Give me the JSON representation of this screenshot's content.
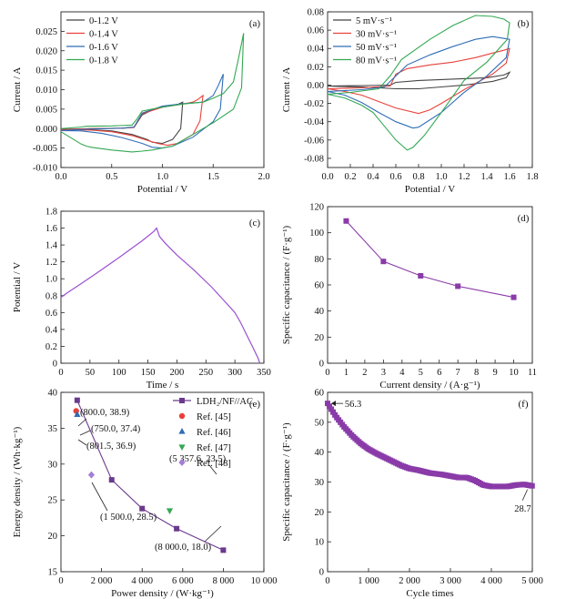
{
  "chart_data": [
    {
      "type": "line",
      "panel_label": "(a)",
      "xlabel": "Potential / V",
      "ylabel": "Current / A",
      "xlim": [
        0,
        2.0
      ],
      "ylim": [
        -0.01,
        0.03
      ],
      "xticks": [
        "0.0",
        "0.5",
        "1.0",
        "1.5",
        "2.0"
      ],
      "yticks": [
        "-0.010",
        "-0.005",
        "0.000",
        "0.005",
        "0.010",
        "0.015",
        "0.020",
        "0.025"
      ],
      "legend_position": "top-left",
      "series": [
        {
          "name": "0-1.2 V",
          "color": "#444444",
          "x": [
            0,
            0.3,
            0.6,
            0.72,
            0.8,
            0.9,
            1.0,
            1.1,
            1.15,
            1.2,
            1.18,
            1.1,
            1.0,
            0.9,
            0.85,
            0.7,
            0.5,
            0.3,
            0.1,
            0
          ],
          "y": [
            -0.0002,
            0.0,
            0.0001,
            0.0003,
            0.0035,
            0.0048,
            0.0055,
            0.006,
            0.0062,
            0.0068,
            0.0,
            -0.0028,
            -0.0038,
            -0.0035,
            -0.0028,
            -0.0015,
            -0.0006,
            -0.0003,
            -0.0002,
            -0.0002
          ]
        },
        {
          "name": "0-1.4 V",
          "color": "#e8413a",
          "x": [
            0,
            0.3,
            0.6,
            0.72,
            0.8,
            1.0,
            1.2,
            1.3,
            1.35,
            1.4,
            1.37,
            1.3,
            1.15,
            1.05,
            0.95,
            0.85,
            0.7,
            0.5,
            0.3,
            0.1,
            0
          ],
          "y": [
            -0.0003,
            0.0,
            0.0001,
            0.0003,
            0.0038,
            0.0055,
            0.0063,
            0.0068,
            0.0075,
            0.0085,
            0.002,
            -0.0015,
            -0.0038,
            -0.0043,
            -0.0038,
            -0.003,
            -0.0018,
            -0.0008,
            -0.0004,
            -0.0003,
            -0.0003
          ]
        },
        {
          "name": "0-1.6 V",
          "color": "#2f6db5",
          "x": [
            0,
            0.3,
            0.6,
            0.72,
            0.8,
            1.0,
            1.2,
            1.4,
            1.5,
            1.55,
            1.6,
            1.57,
            1.5,
            1.3,
            1.1,
            1.0,
            0.9,
            0.8,
            0.6,
            0.4,
            0.2,
            0
          ],
          "y": [
            -0.0005,
            -0.0001,
            0.0001,
            0.0004,
            0.004,
            0.0058,
            0.0064,
            0.0068,
            0.0085,
            0.011,
            0.014,
            0.005,
            0.0018,
            -0.0022,
            -0.0045,
            -0.005,
            -0.0048,
            -0.0038,
            -0.0023,
            -0.0012,
            -0.0006,
            -0.0005
          ]
        },
        {
          "name": "0-1.8 V",
          "color": "#33a852",
          "x": [
            0,
            0.2,
            0.25,
            0.5,
            0.7,
            0.75,
            0.8,
            1.0,
            1.2,
            1.4,
            1.5,
            1.6,
            1.7,
            1.75,
            1.8,
            1.78,
            1.7,
            1.5,
            1.3,
            1.1,
            1.0,
            0.9,
            0.8,
            0.7,
            0.5,
            0.3,
            0.25,
            0.2,
            0
          ],
          "y": [
            0.0,
            0.0004,
            0.0006,
            0.0007,
            0.0009,
            0.0025,
            0.0045,
            0.0055,
            0.0063,
            0.0068,
            0.0078,
            0.009,
            0.012,
            0.018,
            0.0245,
            0.0105,
            0.005,
            0.0015,
            -0.0015,
            -0.0045,
            -0.005,
            -0.0055,
            -0.0058,
            -0.006,
            -0.0055,
            -0.0048,
            -0.0045,
            -0.004,
            -0.0008
          ]
        }
      ]
    },
    {
      "type": "line",
      "panel_label": "(b)",
      "xlabel": "Potential / V",
      "ylabel": "Current / A",
      "xlim": [
        0,
        1.8
      ],
      "ylim": [
        -0.09,
        0.08
      ],
      "xticks": [
        "0.0",
        "0.2",
        "0.4",
        "0.6",
        "0.8",
        "1.0",
        "1.2",
        "1.4",
        "1.6",
        "1.8"
      ],
      "yticks": [
        "-0.08",
        "-0.06",
        "-0.04",
        "-0.02",
        "0.00",
        "0.02",
        "0.04",
        "0.06",
        "0.08"
      ],
      "legend_position": "top-left",
      "series": [
        {
          "name": "5 mV·s⁻¹",
          "color": "#444444",
          "x": [
            0,
            0.3,
            0.55,
            0.6,
            0.8,
            1.0,
            1.2,
            1.4,
            1.55,
            1.6,
            1.57,
            1.45,
            1.2,
            1.0,
            0.8,
            0.6,
            0.45,
            0.3,
            0.1,
            0
          ],
          "y": [
            -0.001,
            -0.0005,
            0.0,
            0.003,
            0.005,
            0.006,
            0.007,
            0.008,
            0.011,
            0.014,
            0.008,
            0.004,
            0.0,
            -0.002,
            -0.004,
            -0.004,
            -0.003,
            -0.002,
            -0.0015,
            -0.001
          ]
        },
        {
          "name": "30 mV·s⁻¹",
          "color": "#e8413a",
          "x": [
            0,
            0.3,
            0.55,
            0.6,
            0.7,
            0.9,
            1.1,
            1.3,
            1.45,
            1.55,
            1.6,
            1.57,
            1.45,
            1.2,
            1.0,
            0.9,
            0.8,
            0.6,
            0.45,
            0.3,
            0.15,
            0
          ],
          "y": [
            -0.004,
            -0.003,
            -0.001,
            0.012,
            0.018,
            0.022,
            0.025,
            0.03,
            0.035,
            0.038,
            0.04,
            0.024,
            0.012,
            -0.005,
            -0.02,
            -0.027,
            -0.031,
            -0.025,
            -0.018,
            -0.011,
            -0.007,
            -0.004
          ]
        },
        {
          "name": "50 mV·s⁻¹",
          "color": "#2f6db5",
          "x": [
            0,
            0.3,
            0.5,
            0.6,
            0.7,
            0.9,
            1.1,
            1.3,
            1.45,
            1.55,
            1.6,
            1.57,
            1.4,
            1.2,
            1.0,
            0.8,
            0.75,
            0.6,
            0.45,
            0.3,
            0.15,
            0
          ],
          "y": [
            -0.007,
            -0.005,
            -0.002,
            0.01,
            0.022,
            0.033,
            0.042,
            0.05,
            0.053,
            0.051,
            0.05,
            0.03,
            0.01,
            -0.008,
            -0.03,
            -0.046,
            -0.047,
            -0.04,
            -0.03,
            -0.019,
            -0.011,
            -0.007
          ]
        },
        {
          "name": "80 mV·s⁻¹",
          "color": "#33a852",
          "x": [
            0,
            0.2,
            0.45,
            0.55,
            0.65,
            0.9,
            1.1,
            1.3,
            1.45,
            1.55,
            1.6,
            1.58,
            1.4,
            1.2,
            1.0,
            0.85,
            0.75,
            0.7,
            0.6,
            0.5,
            0.4,
            0.3,
            0.15,
            0
          ],
          "y": [
            -0.01,
            -0.008,
            -0.004,
            0.01,
            0.028,
            0.05,
            0.065,
            0.076,
            0.075,
            0.072,
            0.068,
            0.05,
            0.025,
            0.005,
            -0.03,
            -0.055,
            -0.068,
            -0.071,
            -0.06,
            -0.045,
            -0.03,
            -0.022,
            -0.014,
            -0.01
          ]
        }
      ]
    },
    {
      "type": "line",
      "panel_label": "(c)",
      "xlabel": "Time / s",
      "ylabel": "Potential / V",
      "xlim": [
        0,
        350
      ],
      "ylim": [
        0,
        1.8
      ],
      "xticks": [
        "0",
        "50",
        "100",
        "150",
        "200",
        "250",
        "300",
        "350"
      ],
      "yticks": [
        "0",
        "0.2",
        "0.4",
        "0.6",
        "0.8",
        "1.0",
        "1.2",
        "1.4",
        "1.6",
        "1.8"
      ],
      "series": [
        {
          "name": "",
          "color": "#9b4fd1",
          "x": [
            0,
            10,
            30,
            60,
            100,
            140,
            160,
            165,
            170,
            180,
            200,
            230,
            260,
            280,
            300,
            310,
            320,
            330,
            340,
            343
          ],
          "y": [
            0.78,
            0.83,
            0.92,
            1.06,
            1.25,
            1.45,
            1.56,
            1.6,
            1.5,
            1.42,
            1.28,
            1.1,
            0.9,
            0.75,
            0.6,
            0.48,
            0.34,
            0.2,
            0.06,
            0.0
          ]
        }
      ]
    },
    {
      "type": "line",
      "panel_label": "(d)",
      "xlabel": "Current density / (A·g⁻¹)",
      "ylabel": "Specific capacitance / (F·g⁻¹)",
      "xlim": [
        0,
        11
      ],
      "ylim": [
        0,
        120
      ],
      "xticks": [
        "0",
        "1",
        "2",
        "3",
        "4",
        "5",
        "6",
        "7",
        "8",
        "9",
        "10",
        "11"
      ],
      "yticks": [
        "0",
        "20",
        "40",
        "60",
        "80",
        "100",
        "120"
      ],
      "series": [
        {
          "name": "",
          "color": "#8a3ba8",
          "x": [
            1,
            3,
            5,
            7,
            10
          ],
          "y": [
            109,
            78,
            67,
            59,
            50.5
          ]
        }
      ]
    },
    {
      "type": "scatter",
      "panel_label": "(e)",
      "xlabel": "Power density / (W·kg⁻¹)",
      "ylabel": "Energy density / (Wh·kg⁻¹)",
      "xlim": [
        0,
        10000
      ],
      "ylim": [
        15,
        40
      ],
      "xticks": [
        "0",
        "2 000",
        "4 000",
        "6 000",
        "8 000",
        "10 000"
      ],
      "yticks": [
        "15",
        "20",
        "25",
        "30",
        "35",
        "40"
      ],
      "legend_position": "top-right",
      "series": [
        {
          "name": "LDH₂/NF//AC",
          "color": "#6b3a8c",
          "type": "line",
          "x": [
            800,
            2500,
            4000,
            5700,
            8000
          ],
          "y": [
            38.9,
            27.8,
            23.8,
            21.0,
            18.0
          ]
        },
        {
          "name": "Ref. [45]",
          "color": "#e8413a",
          "x": [
            750
          ],
          "y": [
            37.4
          ]
        },
        {
          "name": "Ref. [46]",
          "color": "#2f6db5",
          "x": [
            801.5
          ],
          "y": [
            36.9
          ]
        },
        {
          "name": "Ref. [47]",
          "color": "#33a852",
          "x": [
            5357.6
          ],
          "y": [
            23.5
          ]
        },
        {
          "name": "Ref. [48]",
          "color": "#a57fd6",
          "x": [
            1500
          ],
          "y": [
            28.5
          ]
        }
      ],
      "annotations": [
        "(800.0, 38.9)",
        "(750.0, 37.4)",
        "(801.5, 36.9)",
        "(5 357.6, 23.5)",
        "(1 500.0, 28.5)",
        "(8 000.0, 18.0)"
      ]
    },
    {
      "type": "scatter",
      "panel_label": "(f)",
      "xlabel": "Cycle times",
      "ylabel": "Specific capacitance / (F·g⁻¹)",
      "xlim": [
        0,
        5000
      ],
      "ylim": [
        0,
        60
      ],
      "xticks": [
        "0",
        "1 000",
        "2 000",
        "3 000",
        "4 000",
        "5 000"
      ],
      "yticks": [
        "0",
        "10",
        "20",
        "30",
        "40",
        "50",
        "60"
      ],
      "series": [
        {
          "name": "",
          "color": "#8a3ba8",
          "x": [
            0,
            200,
            400,
            600,
            800,
            1000,
            1200,
            1500,
            1800,
            2000,
            2200,
            2500,
            2800,
            3000,
            3200,
            3400,
            3600,
            3800,
            4000,
            4200,
            4400,
            4600,
            4800,
            5000
          ],
          "y": [
            56.3,
            52,
            48.5,
            45.5,
            43,
            41,
            39.5,
            37.5,
            35.5,
            34.5,
            34,
            33,
            32.5,
            32,
            31.5,
            31.5,
            30.5,
            29,
            28.5,
            28.5,
            28.5,
            29,
            29.2,
            28.7
          ]
        }
      ],
      "annotations": [
        "56.3",
        "28.7"
      ]
    }
  ]
}
